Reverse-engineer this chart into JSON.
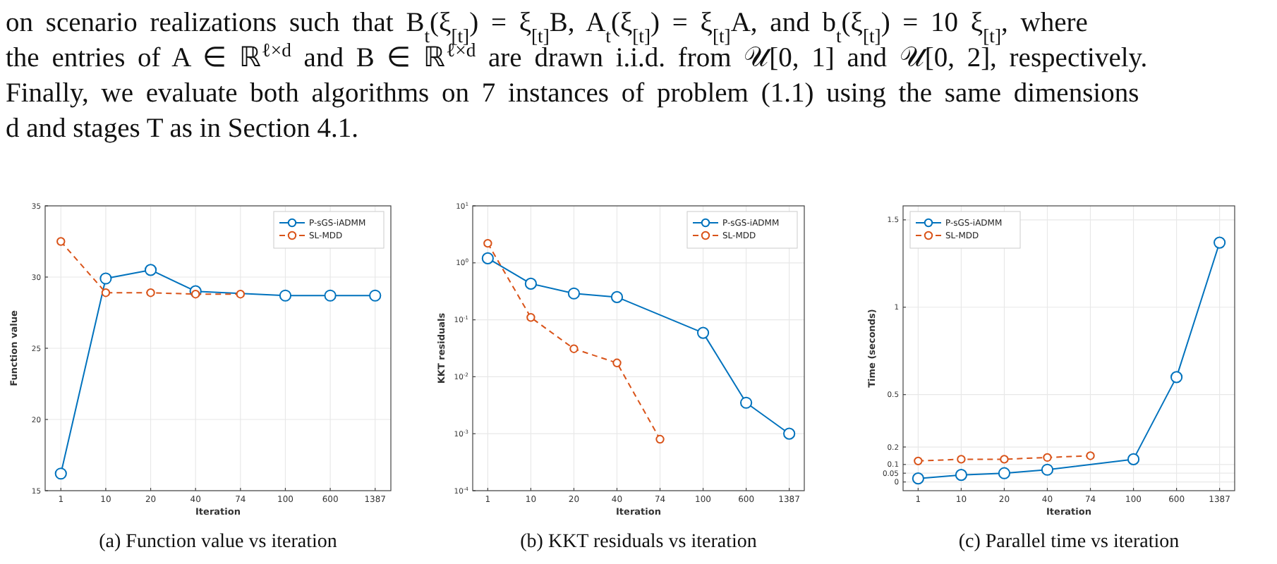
{
  "chart_data": [
    {
      "type": "other",
      "annotations": [
        "on scenario realizations such that B$_{t}$(ξ$_{[t]}$) = ξ$_{[t]}$B, A$_{t}$(ξ$_{[t]}$) = ξ$_{[t]}$A, and b$_{t}$(ξ$_{[t]}$) = 10 ξ$_{[t]}$, where",
        "the entries of A ∈ ℝ$^{ℓ×d}$ and B ∈ ℝ$^{ℓ×d}$ are drawn i.i.d. from 𝒰[0, 1] and 𝒰[0, 2], respectively.",
        "Finally, we evaluate both algorithms on 7 instances of problem (1.1) using the same dimensions",
        "d and stages T as in Section 4.1."
      ]
    },
    {
      "type": "line",
      "title": "(a) Function value vs iteration",
      "xlabel": "Iteration",
      "ylabel": "Function value",
      "categories": [
        "1",
        "10",
        "20",
        "40",
        "74",
        "100",
        "600",
        "1387"
      ],
      "ylim": [
        15,
        35
      ],
      "yticks": [
        15,
        20,
        25,
        30,
        35
      ],
      "grid": true,
      "legend": "top right",
      "marker": "circle",
      "series": [
        {
          "name": "P-sGS-iADMM",
          "color": "#0072bd",
          "line_style": "solid",
          "values": [
            16.2,
            29.9,
            30.5,
            29.0,
            null,
            28.7,
            28.7,
            28.7
          ]
        },
        {
          "name": "SL-MDD",
          "color": "#d95319",
          "line_style": "dashed",
          "values": [
            32.5,
            28.9,
            28.9,
            28.8,
            28.8,
            null,
            null,
            null
          ]
        }
      ]
    },
    {
      "type": "line",
      "title": "(b) KKT residuals vs iteration",
      "xlabel": "Iteration",
      "ylabel": "KKT residuals",
      "categories": [
        "1",
        "10",
        "20",
        "40",
        "74",
        "100",
        "600",
        "1387"
      ],
      "log": "y",
      "ylim": [
        0.0001,
        10
      ],
      "yticks": [
        {
          "value": 0.0001,
          "label": "10$^{-4}$"
        },
        {
          "value": 0.001,
          "label": "10$^{-3}$"
        },
        {
          "value": 0.01,
          "label": "10$^{-2}$"
        },
        {
          "value": 0.1,
          "label": "10$^{-1}$"
        },
        {
          "value": 1,
          "label": "10$^{0}$"
        },
        {
          "value": 10,
          "label": "10$^{1}$"
        }
      ],
      "grid": true,
      "legend": "top right",
      "marker": "circle",
      "series": [
        {
          "name": "P-sGS-iADMM",
          "color": "#0072bd",
          "line_style": "solid",
          "values": [
            1.2,
            0.43,
            0.29,
            0.25,
            null,
            0.059,
            0.0035,
            0.001
          ]
        },
        {
          "name": "SL-MDD",
          "color": "#d95319",
          "line_style": "dashed",
          "values": [
            2.2,
            0.11,
            0.031,
            0.0175,
            0.0008,
            null,
            null,
            null
          ]
        }
      ]
    },
    {
      "type": "line",
      "title": "(c) Parallel time vs iteration",
      "xlabel": "Iteration",
      "ylabel": "Time (seconds)",
      "categories": [
        "1",
        "10",
        "20",
        "40",
        "74",
        "100",
        "600",
        "1387"
      ],
      "ylim": [
        -0.05,
        1.58
      ],
      "yticks": [
        0,
        0.05,
        0.1,
        0.2,
        0.5,
        1,
        1.5
      ],
      "grid": true,
      "legend": "top left",
      "marker": "circle",
      "series": [
        {
          "name": "P-sGS-iADMM",
          "color": "#0072bd",
          "line_style": "solid",
          "values": [
            0.02,
            0.04,
            0.05,
            0.07,
            null,
            0.13,
            0.6,
            1.37
          ]
        },
        {
          "name": "SL-MDD",
          "color": "#d95319",
          "line_style": "dashed",
          "values": [
            0.12,
            0.13,
            0.13,
            0.14,
            0.15,
            null,
            null,
            null
          ]
        }
      ]
    }
  ]
}
